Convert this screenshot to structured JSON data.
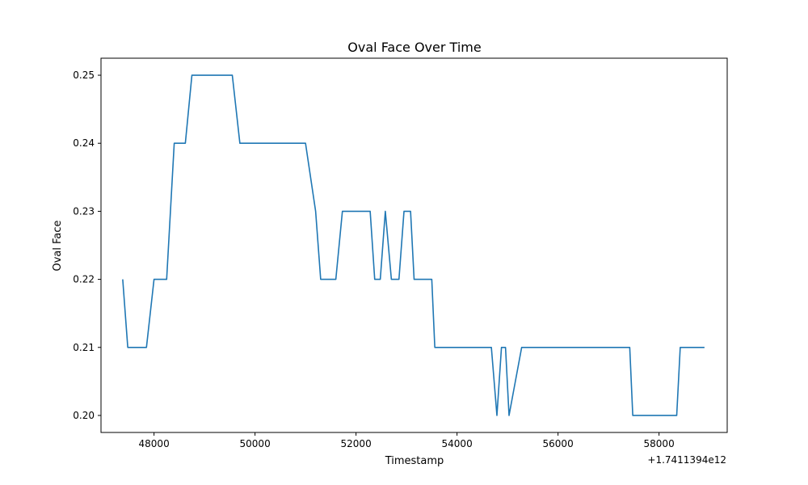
{
  "chart_data": {
    "type": "line",
    "title": "Oval Face Over Time",
    "xlabel": "Timestamp",
    "ylabel": "Oval Face",
    "x_offset_text": "+1.7411394e12",
    "xlim": [
      46950,
      59350
    ],
    "ylim": [
      0.1975,
      0.2525
    ],
    "xticks": [
      48000,
      50000,
      52000,
      54000,
      56000,
      58000
    ],
    "xtick_labels": [
      "48000",
      "50000",
      "52000",
      "54000",
      "56000",
      "58000"
    ],
    "yticks": [
      0.2,
      0.21,
      0.22,
      0.23,
      0.24,
      0.25
    ],
    "ytick_labels": [
      "0.20",
      "0.21",
      "0.22",
      "0.23",
      "0.24",
      "0.25"
    ],
    "grid": false,
    "line_color": "#1f77b4",
    "series": [
      {
        "x": [
          47380,
          47480,
          47850,
          48000,
          48250,
          48400,
          48620,
          48750,
          49550,
          49700,
          50000,
          50500,
          51000,
          51200,
          51300,
          51600,
          51730,
          52280,
          52370,
          52480,
          52580,
          52700,
          52850,
          52950,
          53080,
          53150,
          53500,
          53560,
          54680,
          54790,
          54880,
          54960,
          55030,
          55280,
          55600,
          56500,
          57420,
          57480,
          58350,
          58420,
          58900
        ],
        "y": [
          0.22,
          0.21,
          0.21,
          0.22,
          0.22,
          0.24,
          0.24,
          0.25,
          0.25,
          0.24,
          0.24,
          0.24,
          0.24,
          0.23,
          0.22,
          0.22,
          0.23,
          0.23,
          0.22,
          0.22,
          0.23,
          0.22,
          0.22,
          0.23,
          0.23,
          0.22,
          0.22,
          0.21,
          0.21,
          0.2,
          0.21,
          0.21,
          0.2,
          0.21,
          0.21,
          0.21,
          0.21,
          0.2,
          0.2,
          0.21,
          0.21
        ]
      }
    ]
  }
}
